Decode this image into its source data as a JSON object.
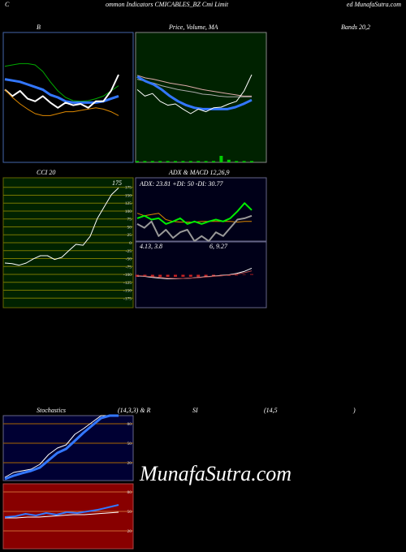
{
  "header": {
    "left": "C",
    "middle": "ommon Indicators CMICABLES_BZ Cmi Limit",
    "right": "ed MunafaSutra.com"
  },
  "captions": {
    "bands": "Bands 20,2",
    "stoch": "Stochastics",
    "stoch_params": "(14,3,3) & R",
    "rsi": "SI",
    "rsi_params": "(14,5",
    "rsi_close": ")"
  },
  "watermark": "MunafaSutra.com",
  "chart_data": [
    {
      "type": "line",
      "title": "B",
      "background": "#000000",
      "border": "#4466aa",
      "ylim": [
        0,
        100
      ],
      "series": [
        {
          "color": "#00aa00",
          "width": 1,
          "values": [
            74,
            75,
            76,
            76,
            75,
            70,
            62,
            55,
            50,
            47.5,
            47,
            47.5,
            49,
            51,
            55,
            59
          ]
        },
        {
          "color": "#3377ff",
          "width": 3,
          "values": [
            64,
            63,
            62,
            60,
            58,
            56,
            52,
            50,
            47,
            46,
            46,
            46,
            46,
            47,
            49,
            51
          ]
        },
        {
          "color": "#ffffff",
          "width": 2,
          "values": [
            56,
            51,
            55,
            49,
            47,
            51,
            46,
            42,
            46,
            44,
            45,
            42,
            47,
            47,
            55,
            67.5
          ]
        },
        {
          "color": "#dd8800",
          "width": 1,
          "values": [
            56,
            50,
            45,
            41,
            37.5,
            36,
            36,
            37.5,
            39,
            39,
            40,
            41,
            42,
            41,
            39,
            36
          ]
        }
      ]
    },
    {
      "type": "line",
      "title": "Price, Volume, MA",
      "background": "#002200",
      "border": "#888888",
      "ylim": [
        0,
        100
      ],
      "series": [
        {
          "color": "#ddaaaa",
          "width": 1,
          "values": [
            67,
            65,
            64,
            62.5,
            61,
            60,
            59,
            57.5,
            56,
            55,
            54,
            53,
            52,
            51,
            51
          ]
        },
        {
          "color": "#aaaaaa",
          "width": 1,
          "values": [
            64,
            62.5,
            61,
            59,
            57.5,
            56,
            55,
            54,
            52.5,
            52,
            51,
            50.5,
            50.5,
            50.5,
            50.5
          ]
        },
        {
          "color": "#3377ff",
          "width": 3,
          "values": [
            66,
            62.5,
            60,
            56,
            51,
            47,
            44,
            42,
            41,
            41,
            41,
            41,
            42.5,
            45,
            48
          ]
        },
        {
          "color": "#ffffff",
          "width": 1,
          "values": [
            56,
            51,
            53,
            47,
            44,
            45,
            41,
            37.5,
            41,
            39,
            42,
            42.5,
            45,
            47,
            55,
            67.5
          ]
        }
      ],
      "bars": {
        "color": "#00cc00",
        "values": [
          1,
          1,
          1,
          1,
          1,
          1,
          1,
          1,
          1,
          1,
          1,
          5,
          2,
          1,
          1,
          1
        ]
      }
    },
    {
      "type": "line",
      "title": "CCI 20",
      "background": "#002200",
      "border": "#666600",
      "ylim": [
        -205,
        205
      ],
      "yticks": [
        175,
        150,
        125,
        100,
        75,
        50,
        25,
        0,
        -25,
        -50,
        -75,
        -100,
        -125,
        -150,
        -175
      ],
      "grid": true,
      "grid_color": "#777700",
      "annotations": [
        "175"
      ],
      "series": [
        {
          "color": "#ffffff",
          "width": 1,
          "values": [
            -64,
            -66,
            -71,
            -64,
            -51,
            -41,
            -41,
            -53,
            -46,
            -25,
            -5,
            -8,
            20,
            76,
            114,
            152,
            173
          ]
        }
      ]
    },
    {
      "type": "line",
      "title": "ADX  & MACD 12,26,9",
      "background": "#000018",
      "border": "#666688",
      "ylim": [
        0,
        100
      ],
      "annotations": [
        "ADX: 23.81 +DI: 50 -DI: 30.77"
      ],
      "series": [
        {
          "color": "#dd8800",
          "width": 1,
          "values": [
            44,
            40,
            42,
            44,
            34,
            31,
            30,
            30,
            30,
            31,
            31,
            31,
            31,
            31,
            30,
            31,
            31
          ]
        },
        {
          "color": "#999999",
          "width": 2,
          "values": [
            27,
            21,
            31,
            8,
            18,
            5,
            14,
            18,
            0,
            8,
            0,
            14,
            8,
            21,
            34,
            36,
            40
          ]
        },
        {
          "color": "#00ee00",
          "width": 2,
          "values": [
            36,
            40,
            34,
            36,
            27,
            31,
            36,
            27,
            31,
            27,
            31,
            34,
            31,
            36,
            47,
            60,
            49
          ]
        }
      ]
    },
    {
      "type": "line",
      "background": "#000018",
      "border": "#666688",
      "ylim": [
        -10,
        10
      ],
      "annotations": [
        "4.13, 3.8",
        "6, 9.27"
      ],
      "bars": {
        "color": "#cc2222",
        "values": [
          -0.6,
          -0.6,
          -0.6,
          -0.6,
          -0.6,
          -0.6,
          -0.6,
          -0.6,
          -0.6,
          -0.6,
          -0.5,
          -0.4,
          -0.3,
          -0.2,
          -0.1,
          0.2
        ]
      },
      "series": [
        {
          "color": "#ffffff",
          "width": 1,
          "values": [
            -0.3,
            -0.5,
            -0.8,
            -1,
            -1.2,
            -1.2,
            -1.1,
            -1,
            -0.8,
            -0.6,
            -0.4,
            -0.2,
            0,
            0.4,
            1,
            2
          ]
        },
        {
          "color": "#aa4444",
          "width": 1,
          "values": [
            -0.2,
            -0.4,
            -0.6,
            -0.8,
            -1,
            -1.1,
            -1.1,
            -1,
            -0.9,
            -0.7,
            -0.5,
            -0.3,
            -0.1,
            0.2,
            0.6,
            1.2
          ]
        }
      ]
    },
    {
      "type": "line",
      "background": "#000033",
      "border": "#666688",
      "ylim": [
        -7.5,
        92.5
      ],
      "yticks": [
        80,
        50,
        20
      ],
      "grid": true,
      "grid_color": "#aa6600",
      "series": [
        {
          "color": "#ffffff",
          "width": 1,
          "values": [
            -2.5,
            5,
            7.5,
            10,
            17.5,
            32.5,
            42.5,
            47.5,
            63.75,
            72.5,
            82.5,
            92.5,
            92.5,
            92.5
          ]
        },
        {
          "color": "#3377ff",
          "width": 3,
          "values": [
            -5,
            0,
            4,
            7.5,
            12.5,
            23.75,
            35,
            41.25,
            53.75,
            66.25,
            77.5,
            88.75,
            92.5,
            92.5
          ]
        }
      ]
    },
    {
      "type": "line",
      "background": "#880000",
      "border": "#aa4444",
      "ylim": [
        -7.5,
        92.5
      ],
      "yticks": [
        80,
        50,
        20
      ],
      "grid": true,
      "grid_color": "#cc6633",
      "series": [
        {
          "color": "#ffffff",
          "width": 1,
          "values": [
            40,
            40,
            41.25,
            41.25,
            42.5,
            43.75,
            45,
            45,
            46.25,
            47.5,
            48.75
          ]
        },
        {
          "color": "#3377ff",
          "width": 2,
          "values": [
            41.25,
            42.5,
            46.25,
            43.75,
            47.5,
            45,
            48.75,
            47.5,
            50,
            52.5,
            56.25,
            60
          ]
        }
      ]
    }
  ]
}
